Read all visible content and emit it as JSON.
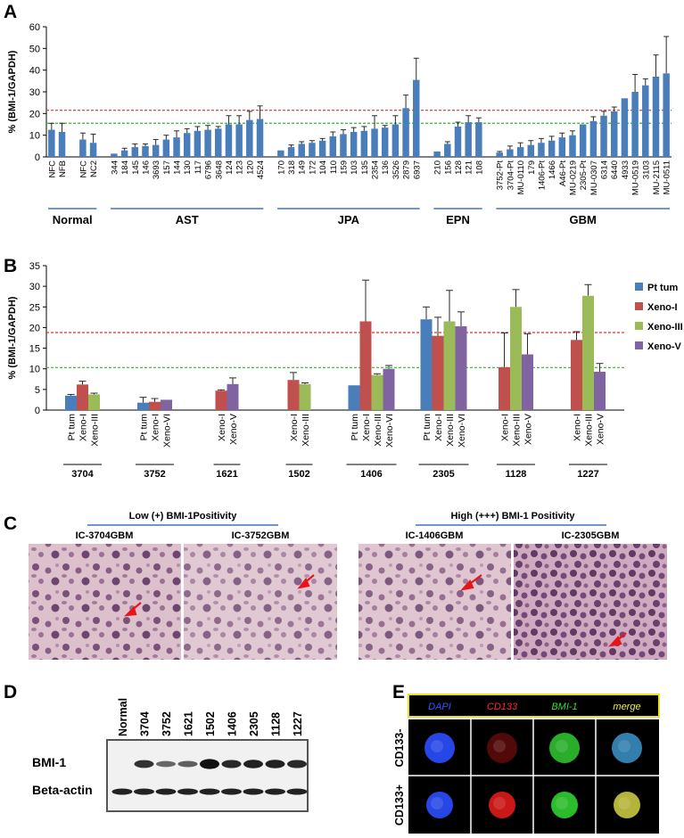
{
  "chart_data": [
    {
      "type": "bar",
      "panel": "A",
      "ylabel": "% (BMI-1/GAPDH)",
      "ylim": [
        0,
        60
      ],
      "yticks": [
        0,
        10,
        20,
        30,
        40,
        50,
        60
      ],
      "color": "#4a7ebb",
      "reference_lines": [
        {
          "value": 21.5,
          "color": "#e03030"
        },
        {
          "value": 15.5,
          "color": "#2eb82e"
        }
      ],
      "groups": [
        {
          "name": "Normal",
          "categories": [
            "NFC",
            "NFB",
            null,
            "NFC",
            "NC2"
          ],
          "values": [
            12.5,
            11.5,
            null,
            8,
            6.5
          ],
          "errors": [
            3,
            4,
            null,
            3,
            4
          ]
        },
        {
          "name": "AST",
          "categories": [
            "344",
            "184",
            "145",
            "146",
            "3693",
            "157",
            "144",
            "130",
            "117",
            "6796",
            "3648",
            "124",
            "123",
            "120",
            "4524"
          ],
          "values": [
            1.5,
            3,
            4.5,
            5,
            5.5,
            8,
            9,
            11,
            12,
            12.5,
            13,
            15,
            15,
            17,
            17.5
          ],
          "errors": [
            null,
            1,
            1.5,
            1,
            2.5,
            2,
            3,
            2,
            2,
            2,
            1,
            4,
            4,
            4,
            6
          ]
        },
        {
          "name": "JPA",
          "categories": [
            "170",
            "318",
            "149",
            "172",
            "104",
            "110",
            "159",
            "103",
            "135",
            "2354",
            "136",
            "3526",
            "2879",
            "6937"
          ],
          "values": [
            3,
            4.5,
            6,
            6.5,
            7.5,
            9.5,
            10.5,
            11.5,
            12,
            13,
            13.5,
            15,
            22.5,
            35.5
          ],
          "errors": [
            null,
            1,
            1,
            1,
            1,
            2,
            2,
            2,
            2,
            6,
            1,
            4,
            6,
            10
          ]
        },
        {
          "name": "EPN",
          "categories": [
            "210",
            "156",
            "128",
            "121",
            "108"
          ],
          "values": [
            2.5,
            6,
            14,
            16,
            16
          ],
          "errors": [
            null,
            1,
            2,
            3,
            2
          ]
        },
        {
          "name": "GBM",
          "categories": [
            "3752-Pt",
            "3704-Pt",
            "MU-0110",
            "179",
            "1406-Pt",
            "1466",
            "A46-Pt",
            "MU-0219",
            "2305-Pt",
            "MU-0307",
            "6314",
            "6440",
            "4933",
            "MU-0519",
            "3103",
            "MU-2115",
            "MU-0511"
          ],
          "values": [
            2,
            3.5,
            4.5,
            5.5,
            6.5,
            7.5,
            9,
            10,
            15,
            16.5,
            19,
            21,
            27,
            30,
            33,
            37,
            38.5
          ],
          "errors": [
            0.5,
            1.5,
            2,
            2,
            2,
            2,
            2,
            2,
            null,
            2,
            2,
            2,
            null,
            8,
            3,
            10,
            17
          ]
        }
      ]
    },
    {
      "type": "grouped_bar",
      "panel": "B",
      "ylabel": "% (BMI-1/GAPDH)",
      "ylim": [
        0,
        35
      ],
      "yticks": [
        0,
        5,
        10,
        15,
        20,
        25,
        30,
        35
      ],
      "legend": "right",
      "reference_lines": [
        {
          "value": 18.8,
          "color": "#e03030"
        },
        {
          "value": 10.3,
          "color": "#2eb82e"
        }
      ],
      "categories": [
        "3704",
        "3752",
        "1621",
        "1502",
        "1406",
        "2305",
        "1128",
        "1227"
      ],
      "series": [
        {
          "name": "Pt tum",
          "color": "#4a7ebb",
          "values": [
            3.5,
            1.8,
            null,
            null,
            6,
            22,
            null,
            null
          ],
          "errors": [
            0.3,
            1.3,
            null,
            null,
            null,
            3,
            null,
            null
          ]
        },
        {
          "name": "Xeno-I",
          "color": "#c0504d",
          "values": [
            6.2,
            2,
            4.7,
            7.3,
            21.5,
            18,
            10.4,
            17
          ],
          "errors": [
            0.8,
            0.8,
            0.2,
            1.8,
            10,
            4.5,
            8.3,
            2
          ]
        },
        {
          "name": "Xeno-III",
          "color": "#9bbb59",
          "values": [
            3.8,
            null,
            null,
            6.3,
            8.5,
            21.5,
            25,
            27.7
          ],
          "errors": [
            0.3,
            null,
            null,
            0.3,
            0.3,
            7.5,
            4.2,
            2.7
          ]
        },
        {
          "name": "Xeno-V",
          "color": "#8064a2",
          "values": [
            null,
            2.5,
            6.3,
            null,
            10,
            20.3,
            13.5,
            9.3
          ],
          "errors": [
            null,
            null,
            1.5,
            null,
            0.8,
            3.5,
            5,
            2
          ]
        }
      ],
      "bar_labels": [
        [
          "Pt  tum",
          "Xeno-I",
          "Xeno-III"
        ],
        [
          "Pt  tum",
          "Xeno-I",
          "Xeno-VI"
        ],
        [
          "Xeno-I",
          "Xeno-V"
        ],
        [
          "Xeno-I",
          "Xeno-III"
        ],
        [
          "Pt  tum",
          "Xeno-I",
          "Xeno-III",
          "Xeno-VI"
        ],
        [
          "Pt tum",
          "Xeno-I",
          "Xeno-III",
          "Xeno-VI"
        ],
        [
          "Xeno-I",
          "Xeno-III",
          "Xeno-V"
        ],
        [
          "Xeno-I",
          "Xeno-III",
          "Xeno-V"
        ]
      ]
    }
  ],
  "panel_labels": [
    "A",
    "B",
    "C",
    "D",
    "E"
  ],
  "histology": {
    "groups": [
      {
        "title": "Low (+) BMI-1Positivity",
        "images": [
          "IC-3704GBM",
          "IC-3752GBM"
        ]
      },
      {
        "title": "High (+++) BMI-1 Positivity",
        "images": [
          "IC-1406GBM",
          "IC-2305GBM"
        ]
      }
    ]
  },
  "western_blot": {
    "lanes": [
      "Normal",
      "3704",
      "3752",
      "1621",
      "1502",
      "1406",
      "2305",
      "1128",
      "1227"
    ],
    "rows": [
      "BMI-1",
      "Beta-actin"
    ]
  },
  "immunofluorescence": {
    "channels": [
      {
        "name": "DAPI",
        "color": "#3355ff"
      },
      {
        "name": "CD133",
        "color": "#ff2a2a"
      },
      {
        "name": "BMI-1",
        "color": "#33dd33"
      },
      {
        "name": "merge",
        "color": "#f0f040"
      }
    ],
    "rows": [
      "CD133-",
      "CD133+"
    ]
  }
}
